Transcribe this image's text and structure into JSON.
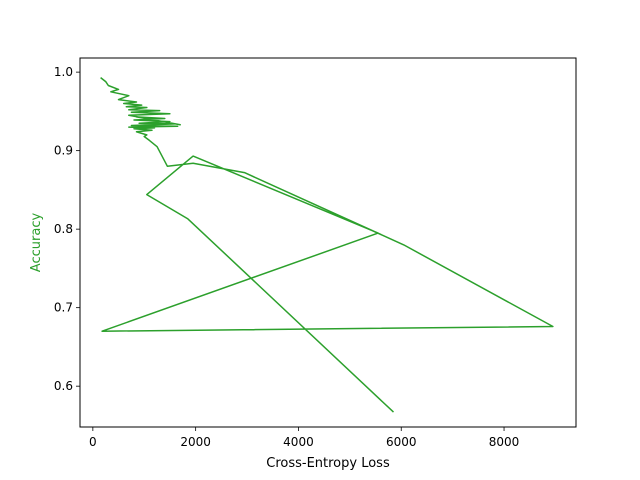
{
  "chart_data": {
    "type": "line",
    "title": "",
    "xlabel": "Cross-Entropy Loss",
    "ylabel": "Accuracy",
    "xlim": [
      -250,
      9400
    ],
    "ylim": [
      0.548,
      1.018
    ],
    "xticks": [
      0,
      2000,
      4000,
      6000,
      8000
    ],
    "xtick_labels": [
      "0",
      "2000",
      "4000",
      "6000",
      "8000"
    ],
    "yticks": [
      0.6,
      0.7,
      0.8,
      0.9,
      1.0
    ],
    "ytick_labels": [
      "0.6",
      "0.7",
      "0.8",
      "0.9",
      "1.0"
    ],
    "grid": false,
    "legend": false,
    "colors": {
      "series": "#2ca02c",
      "axis": "#000000",
      "ylabel": "#2ca02c"
    },
    "series": [
      {
        "x": [
          5850,
          1850,
          1050,
          1950,
          5550,
          180,
          8950,
          6050,
          2950,
          1950,
          1450,
          1250,
          1100,
          1000,
          1050,
          950,
          850,
          1150,
          800,
          1200,
          700,
          1650,
          750,
          1600,
          900,
          1500,
          800,
          1400,
          850,
          1700,
          700,
          1500,
          750,
          1300,
          700,
          1050,
          650,
          950,
          600,
          850,
          500,
          700,
          350,
          500,
          300,
          250,
          150
        ],
        "y": [
          0.567,
          0.813,
          0.844,
          0.893,
          0.795,
          0.67,
          0.676,
          0.78,
          0.872,
          0.884,
          0.88,
          0.905,
          0.913,
          0.918,
          0.92,
          0.922,
          0.924,
          0.926,
          0.928,
          0.929,
          0.93,
          0.931,
          0.932,
          0.934,
          0.935,
          0.937,
          0.939,
          0.941,
          0.943,
          0.933,
          0.945,
          0.947,
          0.949,
          0.951,
          0.952,
          0.955,
          0.956,
          0.958,
          0.96,
          0.962,
          0.965,
          0.97,
          0.975,
          0.978,
          0.983,
          0.988,
          0.993
        ]
      }
    ]
  }
}
